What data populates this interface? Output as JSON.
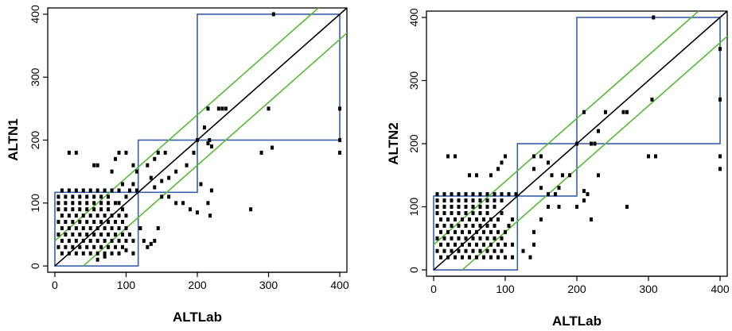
{
  "chart_data": [
    {
      "type": "scatter",
      "xlabel": "ALTLab",
      "ylabel": "ALTN1",
      "xlim": [
        -10,
        410
      ],
      "ylim": [
        -10,
        410
      ],
      "xticks": [
        0,
        100,
        200,
        300,
        400
      ],
      "yticks": [
        0,
        100,
        200,
        300,
        400
      ],
      "lines": {
        "identity_color": "#000000",
        "band_color": "#55bb33",
        "band_offset": 40,
        "box_color": "#3a5fa8"
      },
      "boxes": [
        {
          "x": [
            0,
            117
          ],
          "y": [
            0,
            117
          ]
        },
        {
          "x": [
            117,
            200
          ],
          "y": [
            117,
            200
          ]
        },
        {
          "x": [
            200,
            400
          ],
          "y": [
            200,
            400
          ]
        }
      ],
      "points": [
        [
          307,
          400
        ],
        [
          240,
          250
        ],
        [
          230,
          250
        ],
        [
          235,
          250
        ],
        [
          215,
          250
        ],
        [
          300,
          250
        ],
        [
          400,
          250
        ],
        [
          210,
          220
        ],
        [
          200,
          200
        ],
        [
          217,
          200
        ],
        [
          215,
          195
        ],
        [
          220,
          190
        ],
        [
          290,
          180
        ],
        [
          305,
          188
        ],
        [
          400,
          200
        ],
        [
          400,
          180
        ],
        [
          205,
          130
        ],
        [
          220,
          120
        ],
        [
          215,
          100
        ],
        [
          218,
          80
        ],
        [
          275,
          90
        ],
        [
          195,
          180
        ],
        [
          185,
          160
        ],
        [
          170,
          150
        ],
        [
          160,
          140
        ],
        [
          150,
          135
        ],
        [
          145,
          180
        ],
        [
          155,
          180
        ],
        [
          140,
          170
        ],
        [
          130,
          160
        ],
        [
          135,
          140
        ],
        [
          140,
          125
        ],
        [
          150,
          110
        ],
        [
          160,
          110
        ],
        [
          170,
          100
        ],
        [
          180,
          100
        ],
        [
          190,
          90
        ],
        [
          200,
          85
        ],
        [
          145,
          60
        ],
        [
          140,
          40
        ],
        [
          135,
          35
        ],
        [
          130,
          30
        ],
        [
          120,
          60
        ],
        [
          125,
          40
        ],
        [
          115,
          150
        ],
        [
          110,
          160
        ],
        [
          100,
          180
        ],
        [
          90,
          180
        ],
        [
          85,
          170
        ],
        [
          80,
          150
        ],
        [
          95,
          130
        ],
        [
          105,
          120
        ],
        [
          110,
          130
        ],
        [
          115,
          120
        ],
        [
          100,
          110
        ],
        [
          90,
          100
        ],
        [
          60,
          160
        ],
        [
          55,
          160
        ],
        [
          30,
          180
        ],
        [
          20,
          180
        ],
        [
          10,
          120
        ],
        [
          20,
          120
        ],
        [
          30,
          120
        ],
        [
          40,
          120
        ],
        [
          50,
          120
        ],
        [
          60,
          120
        ],
        [
          70,
          120
        ],
        [
          80,
          120
        ],
        [
          90,
          120
        ],
        [
          5,
          110
        ],
        [
          15,
          110
        ],
        [
          25,
          110
        ],
        [
          35,
          110
        ],
        [
          45,
          110
        ],
        [
          55,
          110
        ],
        [
          65,
          110
        ],
        [
          75,
          110
        ],
        [
          5,
          100
        ],
        [
          15,
          100
        ],
        [
          25,
          100
        ],
        [
          35,
          100
        ],
        [
          45,
          100
        ],
        [
          55,
          100
        ],
        [
          65,
          100
        ],
        [
          75,
          100
        ],
        [
          85,
          100
        ],
        [
          5,
          90
        ],
        [
          15,
          90
        ],
        [
          25,
          90
        ],
        [
          35,
          90
        ],
        [
          45,
          90
        ],
        [
          55,
          90
        ],
        [
          65,
          90
        ],
        [
          75,
          90
        ],
        [
          95,
          90
        ],
        [
          10,
          80
        ],
        [
          20,
          80
        ],
        [
          30,
          80
        ],
        [
          40,
          80
        ],
        [
          50,
          80
        ],
        [
          60,
          80
        ],
        [
          70,
          80
        ],
        [
          80,
          80
        ],
        [
          90,
          80
        ],
        [
          100,
          80
        ],
        [
          5,
          70
        ],
        [
          15,
          70
        ],
        [
          25,
          70
        ],
        [
          35,
          70
        ],
        [
          45,
          70
        ],
        [
          55,
          70
        ],
        [
          65,
          70
        ],
        [
          75,
          70
        ],
        [
          85,
          70
        ],
        [
          95,
          70
        ],
        [
          10,
          60
        ],
        [
          20,
          60
        ],
        [
          30,
          60
        ],
        [
          40,
          60
        ],
        [
          50,
          60
        ],
        [
          60,
          60
        ],
        [
          70,
          60
        ],
        [
          80,
          60
        ],
        [
          90,
          60
        ],
        [
          100,
          60
        ],
        [
          5,
          50
        ],
        [
          15,
          50
        ],
        [
          25,
          50
        ],
        [
          35,
          50
        ],
        [
          45,
          50
        ],
        [
          55,
          50
        ],
        [
          65,
          50
        ],
        [
          75,
          50
        ],
        [
          85,
          50
        ],
        [
          95,
          50
        ],
        [
          105,
          50
        ],
        [
          10,
          40
        ],
        [
          20,
          40
        ],
        [
          30,
          40
        ],
        [
          40,
          40
        ],
        [
          50,
          40
        ],
        [
          60,
          40
        ],
        [
          70,
          40
        ],
        [
          80,
          40
        ],
        [
          90,
          40
        ],
        [
          100,
          40
        ],
        [
          110,
          40
        ],
        [
          5,
          30
        ],
        [
          15,
          30
        ],
        [
          25,
          30
        ],
        [
          35,
          30
        ],
        [
          45,
          30
        ],
        [
          55,
          30
        ],
        [
          65,
          30
        ],
        [
          75,
          30
        ],
        [
          85,
          30
        ],
        [
          95,
          30
        ],
        [
          10,
          20
        ],
        [
          20,
          20
        ],
        [
          30,
          20
        ],
        [
          40,
          20
        ],
        [
          50,
          20
        ],
        [
          60,
          20
        ],
        [
          70,
          20
        ],
        [
          80,
          20
        ],
        [
          90,
          20
        ],
        [
          60,
          10
        ],
        [
          70,
          15
        ],
        [
          110,
          20
        ],
        [
          100,
          25
        ]
      ]
    },
    {
      "type": "scatter",
      "xlabel": "ALTLab",
      "ylabel": "ALTN2",
      "xlim": [
        -10,
        410
      ],
      "ylim": [
        -10,
        410
      ],
      "xticks": [
        0,
        100,
        200,
        300,
        400
      ],
      "yticks": [
        0,
        100,
        200,
        300,
        400
      ],
      "lines": {
        "identity_color": "#000000",
        "band_color": "#55bb33",
        "band_offset": 40,
        "box_color": "#3a5fa8"
      },
      "boxes": [
        {
          "x": [
            0,
            117
          ],
          "y": [
            0,
            117
          ]
        },
        {
          "x": [
            117,
            200
          ],
          "y": [
            117,
            200
          ]
        },
        {
          "x": [
            200,
            400
          ],
          "y": [
            200,
            400
          ]
        }
      ],
      "points": [
        [
          307,
          400
        ],
        [
          400,
          350
        ],
        [
          400,
          270
        ],
        [
          305,
          270
        ],
        [
          270,
          250
        ],
        [
          265,
          250
        ],
        [
          240,
          250
        ],
        [
          210,
          250
        ],
        [
          230,
          220
        ],
        [
          200,
          200
        ],
        [
          220,
          200
        ],
        [
          225,
          200
        ],
        [
          300,
          180
        ],
        [
          310,
          180
        ],
        [
          400,
          180
        ],
        [
          400,
          160
        ],
        [
          230,
          150
        ],
        [
          215,
          120
        ],
        [
          210,
          125
        ],
        [
          210,
          110
        ],
        [
          220,
          80
        ],
        [
          270,
          100
        ],
        [
          200,
          100
        ],
        [
          180,
          150
        ],
        [
          190,
          150
        ],
        [
          175,
          130
        ],
        [
          170,
          120
        ],
        [
          150,
          180
        ],
        [
          140,
          180
        ],
        [
          160,
          170
        ],
        [
          165,
          150
        ],
        [
          140,
          160
        ],
        [
          150,
          130
        ],
        [
          160,
          120
        ],
        [
          175,
          100
        ],
        [
          150,
          80
        ],
        [
          140,
          60
        ],
        [
          140,
          40
        ],
        [
          135,
          20
        ],
        [
          125,
          30
        ],
        [
          160,
          100
        ],
        [
          100,
          180
        ],
        [
          95,
          170
        ],
        [
          90,
          160
        ],
        [
          80,
          150
        ],
        [
          60,
          150
        ],
        [
          50,
          150
        ],
        [
          30,
          180
        ],
        [
          20,
          180
        ],
        [
          5,
          120
        ],
        [
          15,
          120
        ],
        [
          25,
          120
        ],
        [
          35,
          120
        ],
        [
          45,
          120
        ],
        [
          55,
          120
        ],
        [
          65,
          120
        ],
        [
          75,
          120
        ],
        [
          85,
          120
        ],
        [
          95,
          120
        ],
        [
          105,
          120
        ],
        [
          115,
          120
        ],
        [
          5,
          110
        ],
        [
          15,
          110
        ],
        [
          25,
          110
        ],
        [
          35,
          110
        ],
        [
          45,
          110
        ],
        [
          55,
          110
        ],
        [
          65,
          110
        ],
        [
          75,
          110
        ],
        [
          85,
          110
        ],
        [
          95,
          110
        ],
        [
          5,
          100
        ],
        [
          15,
          100
        ],
        [
          25,
          100
        ],
        [
          35,
          100
        ],
        [
          45,
          100
        ],
        [
          55,
          100
        ],
        [
          65,
          100
        ],
        [
          75,
          100
        ],
        [
          85,
          100
        ],
        [
          5,
          90
        ],
        [
          15,
          90
        ],
        [
          25,
          90
        ],
        [
          35,
          90
        ],
        [
          45,
          90
        ],
        [
          55,
          90
        ],
        [
          65,
          90
        ],
        [
          75,
          90
        ],
        [
          95,
          90
        ],
        [
          10,
          80
        ],
        [
          20,
          80
        ],
        [
          30,
          80
        ],
        [
          40,
          80
        ],
        [
          50,
          80
        ],
        [
          60,
          80
        ],
        [
          70,
          80
        ],
        [
          80,
          80
        ],
        [
          90,
          80
        ],
        [
          110,
          80
        ],
        [
          5,
          70
        ],
        [
          15,
          70
        ],
        [
          25,
          70
        ],
        [
          35,
          70
        ],
        [
          45,
          70
        ],
        [
          55,
          70
        ],
        [
          65,
          70
        ],
        [
          75,
          70
        ],
        [
          85,
          70
        ],
        [
          105,
          70
        ],
        [
          10,
          60
        ],
        [
          20,
          60
        ],
        [
          30,
          60
        ],
        [
          40,
          60
        ],
        [
          50,
          60
        ],
        [
          60,
          60
        ],
        [
          70,
          60
        ],
        [
          80,
          60
        ],
        [
          90,
          60
        ],
        [
          100,
          60
        ],
        [
          5,
          50
        ],
        [
          15,
          50
        ],
        [
          25,
          50
        ],
        [
          35,
          50
        ],
        [
          45,
          50
        ],
        [
          55,
          50
        ],
        [
          65,
          50
        ],
        [
          75,
          50
        ],
        [
          85,
          50
        ],
        [
          95,
          50
        ],
        [
          10,
          40
        ],
        [
          20,
          40
        ],
        [
          30,
          40
        ],
        [
          40,
          40
        ],
        [
          50,
          40
        ],
        [
          60,
          40
        ],
        [
          70,
          40
        ],
        [
          80,
          40
        ],
        [
          90,
          40
        ],
        [
          100,
          40
        ],
        [
          110,
          40
        ],
        [
          5,
          30
        ],
        [
          15,
          30
        ],
        [
          25,
          30
        ],
        [
          35,
          30
        ],
        [
          45,
          30
        ],
        [
          55,
          30
        ],
        [
          65,
          30
        ],
        [
          75,
          30
        ],
        [
          85,
          30
        ],
        [
          95,
          30
        ],
        [
          10,
          20
        ],
        [
          20,
          20
        ],
        [
          30,
          20
        ],
        [
          40,
          20
        ],
        [
          50,
          20
        ],
        [
          60,
          20
        ],
        [
          70,
          20
        ],
        [
          80,
          20
        ],
        [
          90,
          20
        ],
        [
          100,
          20
        ],
        [
          110,
          20
        ]
      ]
    }
  ]
}
